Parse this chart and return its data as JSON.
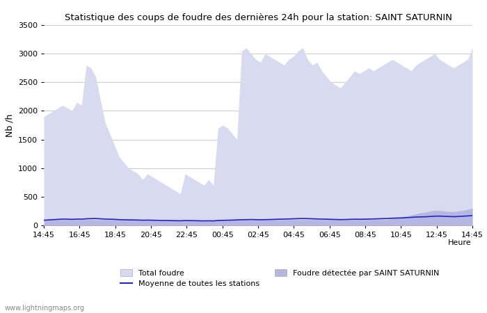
{
  "title": "Statistique des coups de foudre des dernières 24h pour la station: SAINT SATURNIN",
  "ylabel": "Nb /h",
  "xlabel_label": "Heure",
  "watermark": "www.lightningmaps.org",
  "ylim": [
    0,
    3500
  ],
  "x_labels": [
    "14:45",
    "16:45",
    "18:45",
    "20:45",
    "22:45",
    "00:45",
    "02:45",
    "04:45",
    "06:45",
    "08:45",
    "10:45",
    "12:45",
    "14:45"
  ],
  "background_color": "#ffffff",
  "grid_color": "#cccccc",
  "total_foudre_color": "#d8daef",
  "detected_color": "#b4b8e0",
  "mean_line_color": "#2222cc",
  "total_foudre_values": [
    1900,
    1950,
    2000,
    2050,
    2100,
    2050,
    2000,
    2150,
    2100,
    2800,
    2750,
    2600,
    2200,
    1800,
    1600,
    1400,
    1200,
    1100,
    1000,
    950,
    900,
    800,
    900,
    850,
    800,
    750,
    700,
    650,
    600,
    550,
    900,
    850,
    800,
    750,
    700,
    800,
    700,
    1700,
    1750,
    1700,
    1600,
    1500,
    3050,
    3100,
    3000,
    2900,
    2850,
    3000,
    2950,
    2900,
    2850,
    2800,
    2900,
    2950,
    3050,
    3100,
    2900,
    2800,
    2850,
    2700,
    2600,
    2500,
    2450,
    2400,
    2500,
    2600,
    2700,
    2650,
    2700,
    2750,
    2700,
    2750,
    2800,
    2850,
    2900,
    2850,
    2800,
    2750,
    2700,
    2800,
    2850,
    2900,
    2950,
    3000,
    2900,
    2850,
    2800,
    2750,
    2800,
    2850,
    2900,
    3100
  ],
  "detected_values": [
    100,
    100,
    100,
    100,
    100,
    100,
    100,
    100,
    100,
    100,
    100,
    100,
    100,
    100,
    100,
    100,
    100,
    100,
    100,
    100,
    100,
    100,
    100,
    100,
    80,
    80,
    80,
    80,
    80,
    80,
    80,
    80,
    80,
    80,
    80,
    80,
    80,
    100,
    100,
    100,
    100,
    100,
    100,
    100,
    100,
    100,
    100,
    100,
    100,
    100,
    100,
    100,
    100,
    100,
    100,
    100,
    100,
    100,
    100,
    100,
    100,
    100,
    100,
    100,
    100,
    100,
    100,
    100,
    100,
    100,
    100,
    100,
    100,
    100,
    120,
    140,
    150,
    160,
    180,
    200,
    220,
    230,
    250,
    260,
    260,
    250,
    240,
    240,
    250,
    260,
    280,
    300
  ],
  "mean_values": [
    90,
    95,
    100,
    105,
    110,
    108,
    105,
    110,
    108,
    115,
    118,
    120,
    115,
    110,
    108,
    105,
    100,
    98,
    96,
    95,
    93,
    90,
    92,
    90,
    88,
    86,
    85,
    83,
    82,
    80,
    85,
    83,
    82,
    80,
    78,
    80,
    78,
    85,
    88,
    90,
    92,
    95,
    98,
    100,
    102,
    100,
    98,
    100,
    102,
    105,
    108,
    110,
    112,
    115,
    118,
    120,
    118,
    115,
    112,
    110,
    108,
    105,
    103,
    100,
    102,
    105,
    108,
    106,
    108,
    110,
    112,
    115,
    118,
    120,
    125,
    128,
    130,
    135,
    140,
    145,
    148,
    150,
    155,
    160,
    162,
    158,
    155,
    152,
    155,
    160,
    165,
    170
  ],
  "yticks": [
    0,
    500,
    1000,
    1500,
    2000,
    2500,
    3000,
    3500
  ]
}
